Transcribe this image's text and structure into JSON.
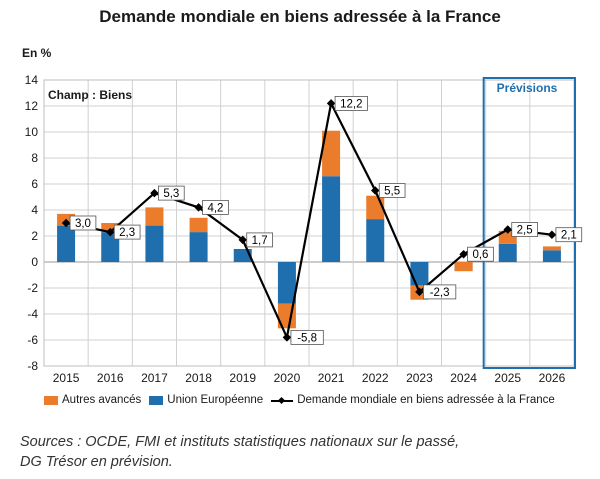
{
  "title": "Demande mondiale en biens adressée à la France",
  "unit_label": "En %",
  "champ_label": "Champ : Biens",
  "forecast_label": "Prévisions",
  "chart_data": {
    "type": "bar",
    "stacked": true,
    "categories": [
      "2015",
      "2016",
      "2017",
      "2018",
      "2019",
      "2020",
      "2021",
      "2022",
      "2023",
      "2024",
      "2025",
      "2026"
    ],
    "series": [
      {
        "name": "Union Européenne",
        "color": "#1f6fae",
        "values": [
          2.8,
          2.3,
          2.8,
          2.3,
          1.0,
          -3.2,
          6.6,
          3.3,
          -1.8,
          -0.7,
          1.4,
          0.9
        ]
      },
      {
        "name": "Autres avancés",
        "color": "#ea7c2b",
        "values": [
          0.9,
          0.7,
          1.4,
          1.1,
          0.0,
          -1.9,
          3.5,
          1.8,
          -1.1,
          0.7,
          1.0,
          0.3
        ]
      },
      {
        "name": "Demande mondiale en biens adressée à la France",
        "color": "#000000",
        "kind": "line",
        "values": [
          3.0,
          2.3,
          5.3,
          4.2,
          1.7,
          -5.8,
          12.2,
          5.5,
          -2.3,
          0.6,
          2.5,
          2.1
        ]
      }
    ],
    "data_labels": [
      "3,0",
      "2,3",
      "5,3",
      "4,2",
      "1,7",
      "-5,8",
      "12,2",
      "5,5",
      "-2,3",
      "0,6",
      "2,5",
      "2,1"
    ],
    "ylim": [
      -8,
      14
    ],
    "yticks": [
      -8,
      -6,
      -4,
      -2,
      0,
      2,
      4,
      6,
      8,
      10,
      12,
      14
    ],
    "ytick_labels": [
      "-8",
      "-6",
      "-4",
      "-2",
      "0",
      "2",
      "4",
      "6",
      "8",
      "10",
      "12",
      "14"
    ],
    "grid": true,
    "forecast_start": "2025",
    "legend_position": "bottom"
  },
  "legend": {
    "autres": "Autres avancés",
    "ue": "Union Européenne",
    "line": "Demande mondiale en biens adressée à la France"
  },
  "source": {
    "line1": "Sources : OCDE, FMI et instituts statistiques nationaux sur le passé,",
    "line2": "DG Trésor en prévision."
  }
}
